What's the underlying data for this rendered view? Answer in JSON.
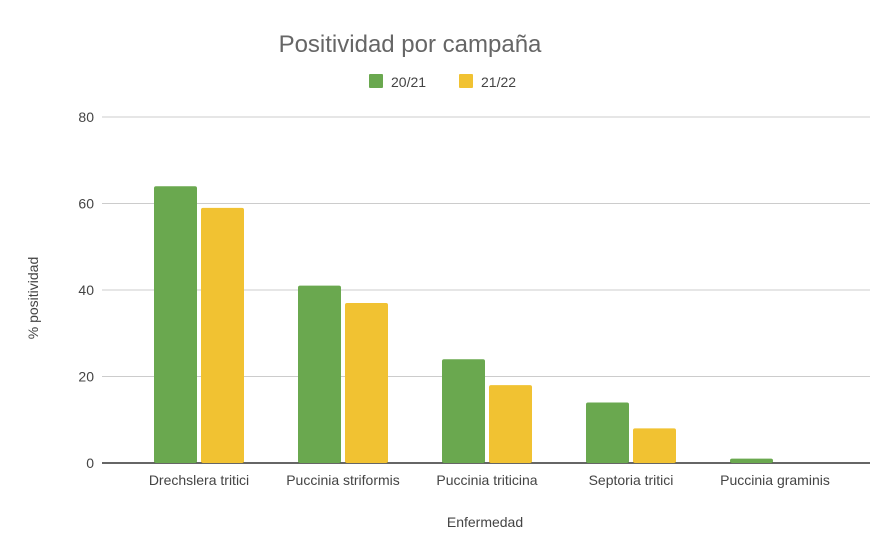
{
  "chart_data": {
    "type": "bar",
    "title": "Positividad por campaña",
    "xlabel": "Enfermedad",
    "ylabel": "% positividad",
    "ylim": [
      0,
      80
    ],
    "yticks": [
      "0",
      "20",
      "40",
      "60",
      "80"
    ],
    "categories": [
      "Drechslera tritici",
      "Puccinia striformis",
      "Puccinia triticina",
      "Septoria tritici",
      "Puccinia graminis"
    ],
    "series": [
      {
        "name": "20/21",
        "color": "#6aa84f",
        "values": [
          64,
          41,
          24,
          14,
          1
        ]
      },
      {
        "name": "21/22",
        "color": "#f1c232",
        "values": [
          59,
          37,
          18,
          8,
          0
        ]
      }
    ],
    "legend": "top-center",
    "grid": true
  }
}
